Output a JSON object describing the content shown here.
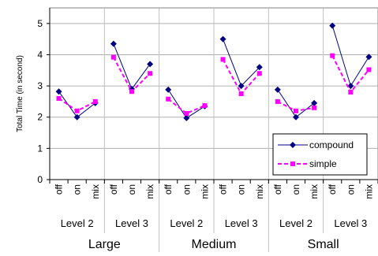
{
  "chart_data": {
    "type": "line",
    "title": "",
    "ylabel": "Total Time (in second)",
    "xlabel": "",
    "ylim": [
      0,
      5.5
    ],
    "yticks": [
      0,
      1,
      2,
      3,
      4,
      5
    ],
    "grid": true,
    "legend_position": "bottom-right",
    "categories": [
      "off",
      "on",
      "mix",
      "off",
      "on",
      "mix",
      "off",
      "on",
      "mix",
      "off",
      "on",
      "mix",
      "off",
      "on",
      "mix",
      "off",
      "on",
      "mix"
    ],
    "level_labels": [
      "Level 2",
      "Level 3",
      "Level 2",
      "Level 3",
      "Level 2",
      "Level 3"
    ],
    "size_labels": [
      "Large",
      "Medium",
      "Small"
    ],
    "series": [
      {
        "name": "compound",
        "color": "#000080",
        "line_style": "solid",
        "marker": "diamond",
        "groups": [
          [
            2.82,
            2.0,
            2.45
          ],
          [
            4.35,
            2.9,
            3.7
          ],
          [
            2.88,
            1.97,
            2.35
          ],
          [
            4.5,
            3.0,
            3.6
          ],
          [
            2.88,
            2.0,
            2.45
          ],
          [
            4.93,
            3.0,
            3.93
          ]
        ]
      },
      {
        "name": "simple",
        "color": "#ff00ff",
        "line_style": "dashed",
        "marker": "square",
        "groups": [
          [
            2.6,
            2.2,
            2.5
          ],
          [
            3.92,
            2.82,
            3.4
          ],
          [
            2.58,
            2.12,
            2.37
          ],
          [
            3.85,
            2.75,
            3.4
          ],
          [
            2.5,
            2.2,
            2.3
          ],
          [
            3.97,
            2.8,
            3.52
          ]
        ]
      }
    ]
  }
}
